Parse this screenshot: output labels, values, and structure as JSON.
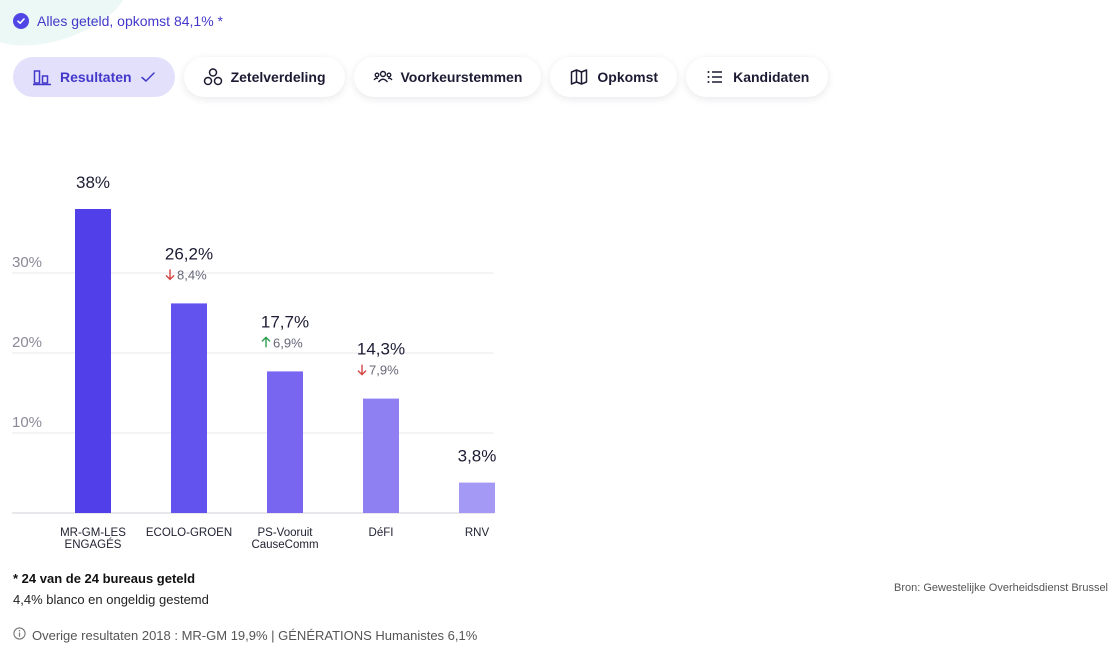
{
  "status": {
    "text": "Alles geteld, opkomst 84,1% *",
    "icon": "check-circle-icon",
    "accent": "#4f46e5"
  },
  "tabs": [
    {
      "label": "Resultaten",
      "icon": "bar-chart-icon",
      "active": true
    },
    {
      "label": "Zetelverdeling",
      "icon": "seats-icon"
    },
    {
      "label": "Voorkeurstemmen",
      "icon": "people-icon"
    },
    {
      "label": "Opkomst",
      "icon": "map-icon"
    },
    {
      "label": "Kandidaten",
      "icon": "list-icon"
    }
  ],
  "chart_data": {
    "type": "bar",
    "categories": [
      "MR-GM-LES ENGAGÉS",
      "ECOLO-GROEN",
      "PS-Vooruit CauseComm",
      "DéFI",
      "RNV"
    ],
    "category_lines": [
      [
        "MR-GM-LES",
        "ENGAGÉS"
      ],
      [
        "ECOLO-GROEN"
      ],
      [
        "PS-Vooruit",
        "CauseComm"
      ],
      [
        "DéFI"
      ],
      [
        "RNV"
      ]
    ],
    "values": [
      38,
      26.2,
      17.7,
      14.3,
      3.8
    ],
    "value_labels": [
      "38%",
      "26,2%",
      "17,7%",
      "14,3%",
      "3,8%"
    ],
    "changes": [
      null,
      {
        "direction": "down",
        "label": "8,4%"
      },
      {
        "direction": "up",
        "label": "6,9%"
      },
      {
        "direction": "down",
        "label": "7,9%"
      },
      null
    ],
    "bar_colors": [
      "#5140ea",
      "#6353ee",
      "#7866f0",
      "#8e7ff3",
      "#a49af6"
    ],
    "yticks": [
      10,
      20,
      30
    ],
    "ytick_labels": [
      "10%",
      "20%",
      "30%"
    ],
    "ylim": [
      0,
      38
    ],
    "grid": true,
    "colors": {
      "up": "#2e9e4e",
      "down": "#d64545"
    }
  },
  "footer": {
    "footnote": "* 24 van de 24 bureaus geteld",
    "blank": "4,4% blanco en ongeldig gestemd",
    "source": "Bron: Gewestelijke Overheidsdienst Brussel",
    "previous": "Overige resultaten 2018 : MR-GM 19,9% | GÉNÉRATIONS Humanistes 6,1%",
    "previous_icon": "info-icon"
  }
}
